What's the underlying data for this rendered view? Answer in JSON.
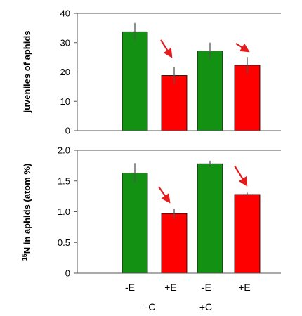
{
  "colors": {
    "neg_E": "#129112",
    "pos_E": "#ff0000",
    "arrow": "#e51c1c",
    "axis": "#555555"
  },
  "x_labels": {
    "categories": [
      "-E",
      "+E",
      "-E",
      "+E"
    ],
    "groups": [
      "-C",
      "+C"
    ]
  },
  "chart_data": [
    {
      "type": "bar",
      "ylabel": "juveniles of aphids",
      "ylim": [
        0,
        40
      ],
      "yticks": [
        "0",
        "10",
        "20",
        "30",
        "40"
      ],
      "categories": [
        "-E",
        "+E",
        "-E",
        "+E"
      ],
      "groups": [
        "-C",
        "-C",
        "+C",
        "+C"
      ],
      "values": [
        33.7,
        18.8,
        27.2,
        22.3
      ],
      "errors": [
        3.0,
        2.8,
        2.8,
        2.8
      ],
      "bar_colors": [
        "#129112",
        "#ff0000",
        "#129112",
        "#ff0000"
      ],
      "annotations": [
        "down-arrow between -C bars",
        "down-arrow between +C bars"
      ]
    },
    {
      "type": "bar",
      "ylabel": "15N in aphids (atom %)",
      "ylabel_superscript": "15",
      "ylabel_rest": "N in aphids (atom %)",
      "ylim": [
        0,
        2.0
      ],
      "yticks": [
        "0",
        "0.5",
        "1.0",
        "1.5",
        "2.0"
      ],
      "categories": [
        "-E",
        "+E",
        "-E",
        "+E"
      ],
      "groups": [
        "-C",
        "-C",
        "+C",
        "+C"
      ],
      "values": [
        1.63,
        0.97,
        1.78,
        1.28
      ],
      "errors": [
        0.16,
        0.08,
        0.05,
        0.03
      ],
      "bar_colors": [
        "#129112",
        "#ff0000",
        "#129112",
        "#ff0000"
      ],
      "annotations": [
        "down-arrow between -C bars",
        "down-arrow between +C bars"
      ]
    }
  ]
}
